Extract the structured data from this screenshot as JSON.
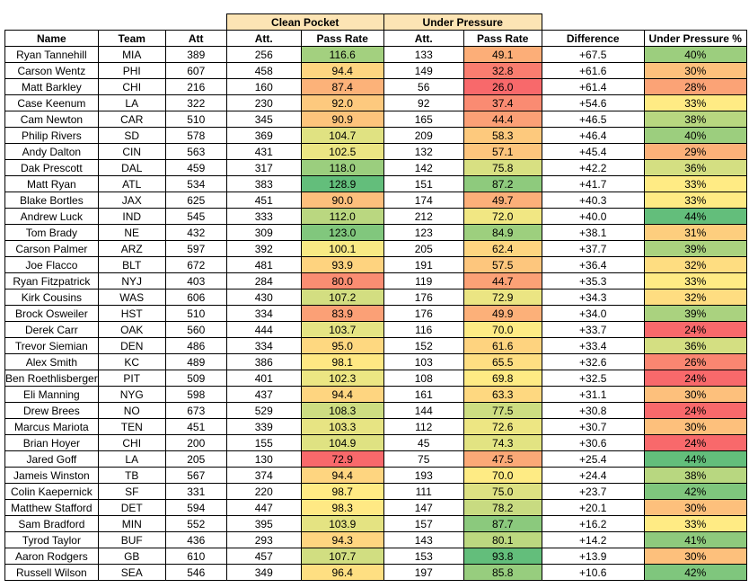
{
  "groups": {
    "clean_pocket": "Clean Pocket",
    "under_pressure": "Under Pressure"
  },
  "columns": [
    "Name",
    "Team",
    "Att",
    "Att.",
    "Pass Rate",
    "Att.",
    "Pass Rate",
    "Difference",
    "Under Pressure %"
  ],
  "rows": [
    [
      "Ryan Tannehill",
      "MIA",
      "389",
      "256",
      "116.6",
      "133",
      "49.1",
      "+67.5",
      "40%"
    ],
    [
      "Carson Wentz",
      "PHI",
      "607",
      "458",
      "94.4",
      "149",
      "32.8",
      "+61.6",
      "30%"
    ],
    [
      "Matt Barkley",
      "CHI",
      "216",
      "160",
      "87.4",
      "56",
      "26.0",
      "+61.4",
      "28%"
    ],
    [
      "Case Keenum",
      "LA",
      "322",
      "230",
      "92.0",
      "92",
      "37.4",
      "+54.6",
      "33%"
    ],
    [
      "Cam Newton",
      "CAR",
      "510",
      "345",
      "90.9",
      "165",
      "44.4",
      "+46.5",
      "38%"
    ],
    [
      "Philip Rivers",
      "SD",
      "578",
      "369",
      "104.7",
      "209",
      "58.3",
      "+46.4",
      "40%"
    ],
    [
      "Andy Dalton",
      "CIN",
      "563",
      "431",
      "102.5",
      "132",
      "57.1",
      "+45.4",
      "29%"
    ],
    [
      "Dak Prescott",
      "DAL",
      "459",
      "317",
      "118.0",
      "142",
      "75.8",
      "+42.2",
      "36%"
    ],
    [
      "Matt Ryan",
      "ATL",
      "534",
      "383",
      "128.9",
      "151",
      "87.2",
      "+41.7",
      "33%"
    ],
    [
      "Blake Bortles",
      "JAX",
      "625",
      "451",
      "90.0",
      "174",
      "49.7",
      "+40.3",
      "33%"
    ],
    [
      "Andrew Luck",
      "IND",
      "545",
      "333",
      "112.0",
      "212",
      "72.0",
      "+40.0",
      "44%"
    ],
    [
      "Tom Brady",
      "NE",
      "432",
      "309",
      "123.0",
      "123",
      "84.9",
      "+38.1",
      "31%"
    ],
    [
      "Carson Palmer",
      "ARZ",
      "597",
      "392",
      "100.1",
      "205",
      "62.4",
      "+37.7",
      "39%"
    ],
    [
      "Joe Flacco",
      "BLT",
      "672",
      "481",
      "93.9",
      "191",
      "57.5",
      "+36.4",
      "32%"
    ],
    [
      "Ryan Fitzpatrick",
      "NYJ",
      "403",
      "284",
      "80.0",
      "119",
      "44.7",
      "+35.3",
      "33%"
    ],
    [
      "Kirk Cousins",
      "WAS",
      "606",
      "430",
      "107.2",
      "176",
      "72.9",
      "+34.3",
      "32%"
    ],
    [
      "Brock Osweiler",
      "HST",
      "510",
      "334",
      "83.9",
      "176",
      "49.9",
      "+34.0",
      "39%"
    ],
    [
      "Derek Carr",
      "OAK",
      "560",
      "444",
      "103.7",
      "116",
      "70.0",
      "+33.7",
      "24%"
    ],
    [
      "Trevor Siemian",
      "DEN",
      "486",
      "334",
      "95.0",
      "152",
      "61.6",
      "+33.4",
      "36%"
    ],
    [
      "Alex Smith",
      "KC",
      "489",
      "386",
      "98.1",
      "103",
      "65.5",
      "+32.6",
      "26%"
    ],
    [
      "Ben Roethlisberger",
      "PIT",
      "509",
      "401",
      "102.3",
      "108",
      "69.8",
      "+32.5",
      "24%"
    ],
    [
      "Eli Manning",
      "NYG",
      "598",
      "437",
      "94.4",
      "161",
      "63.3",
      "+31.1",
      "30%"
    ],
    [
      "Drew Brees",
      "NO",
      "673",
      "529",
      "108.3",
      "144",
      "77.5",
      "+30.8",
      "24%"
    ],
    [
      "Marcus Mariota",
      "TEN",
      "451",
      "339",
      "103.3",
      "112",
      "72.6",
      "+30.7",
      "30%"
    ],
    [
      "Brian Hoyer",
      "CHI",
      "200",
      "155",
      "104.9",
      "45",
      "74.3",
      "+30.6",
      "24%"
    ],
    [
      "Jared Goff",
      "LA",
      "205",
      "130",
      "72.9",
      "75",
      "47.5",
      "+25.4",
      "44%"
    ],
    [
      "Jameis Winston",
      "TB",
      "567",
      "374",
      "94.4",
      "193",
      "70.0",
      "+24.4",
      "38%"
    ],
    [
      "Colin Kaepernick",
      "SF",
      "331",
      "220",
      "98.7",
      "111",
      "75.0",
      "+23.7",
      "42%"
    ],
    [
      "Matthew Stafford",
      "DET",
      "594",
      "447",
      "98.3",
      "147",
      "78.2",
      "+20.1",
      "30%"
    ],
    [
      "Sam Bradford",
      "MIN",
      "552",
      "395",
      "103.9",
      "157",
      "87.7",
      "+16.2",
      "33%"
    ],
    [
      "Tyrod Taylor",
      "BUF",
      "436",
      "293",
      "94.3",
      "143",
      "80.1",
      "+14.2",
      "41%"
    ],
    [
      "Aaron Rodgers",
      "GB",
      "610",
      "457",
      "107.7",
      "153",
      "93.8",
      "+13.9",
      "30%"
    ],
    [
      "Russell Wilson",
      "SEA",
      "546",
      "349",
      "96.4",
      "197",
      "85.8",
      "+10.6",
      "42%"
    ]
  ],
  "heat_colors": {
    "low": "#f8696b",
    "mid": "#ffeb84",
    "high": "#63be7b"
  }
}
